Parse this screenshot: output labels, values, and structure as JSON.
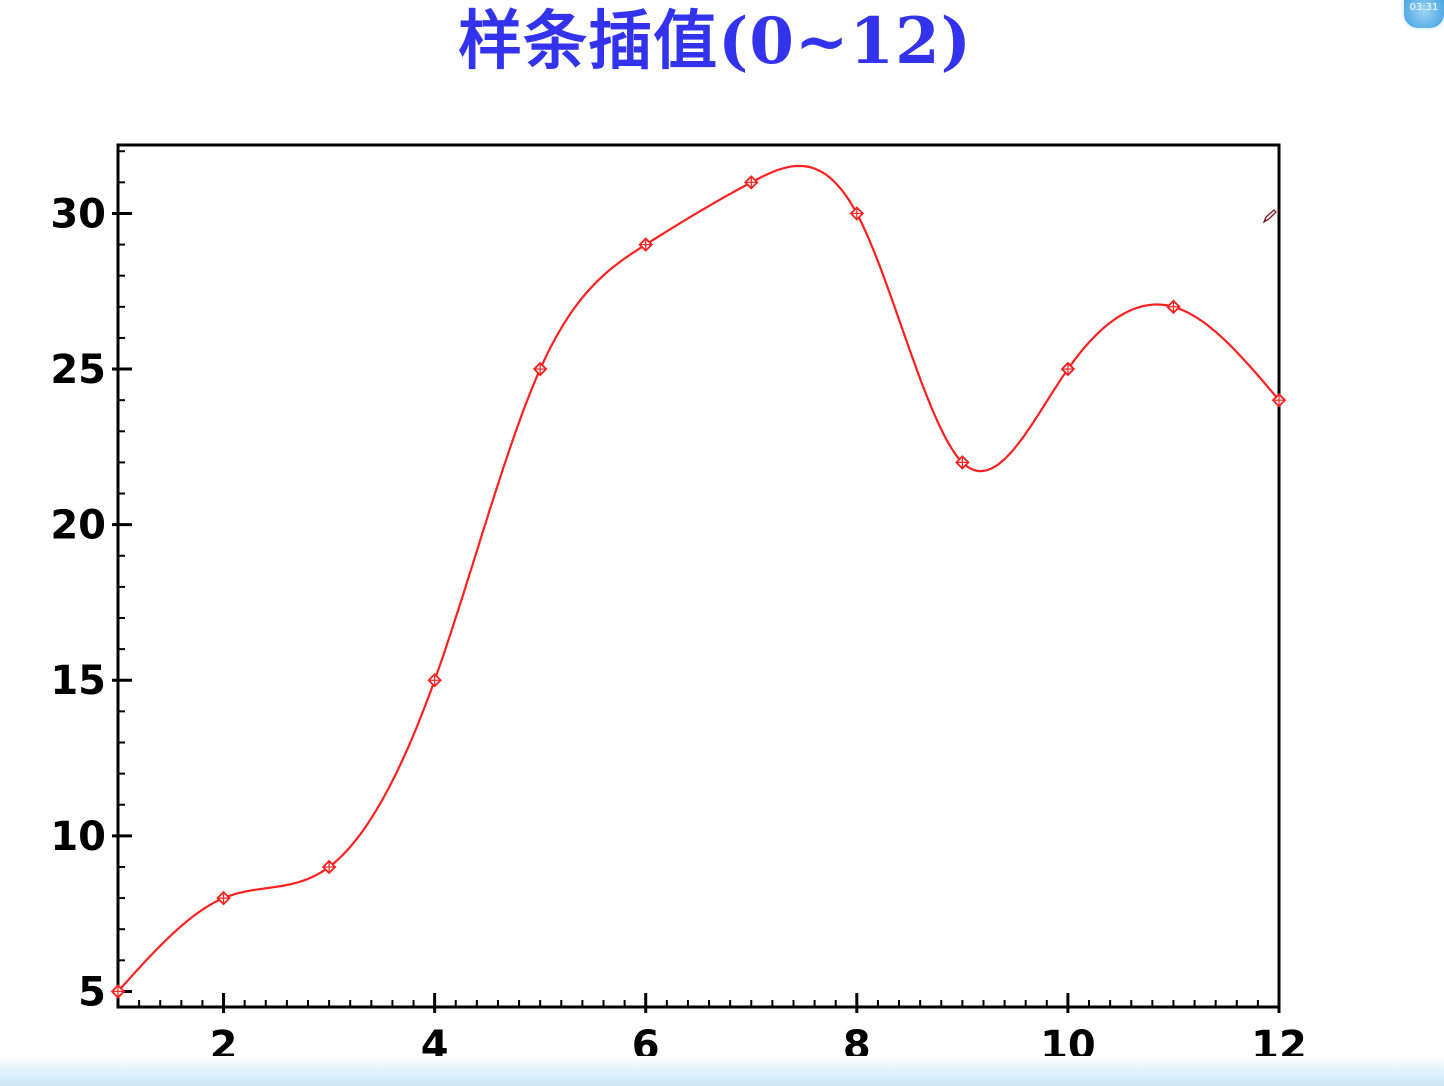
{
  "page": {
    "timer": "03:31"
  },
  "chart_data": {
    "type": "line",
    "title": "样条插值(0~12)",
    "xlabel": "",
    "ylabel": "",
    "x": [
      1,
      2,
      3,
      4,
      5,
      6,
      7,
      8,
      9,
      10,
      11,
      12
    ],
    "series": [
      {
        "values": [
          5,
          8,
          9,
          15,
          25,
          29,
          31,
          30,
          22,
          25,
          27,
          24
        ],
        "color": "#ff2020",
        "marker": "diamond",
        "interpolation": "spline"
      }
    ],
    "xlim": [
      1,
      12
    ],
    "ylim": [
      4.5,
      32.2
    ],
    "xticks": [
      2,
      4,
      6,
      8,
      10,
      12
    ],
    "yticks": [
      5,
      10,
      15,
      20,
      25,
      30
    ],
    "grid": false,
    "legend": "none"
  },
  "colors": {
    "title": "#3333ee",
    "curve": "#ff2020",
    "axes": "#000000"
  },
  "icons": {
    "cursor": "pen-cursor-icon"
  }
}
